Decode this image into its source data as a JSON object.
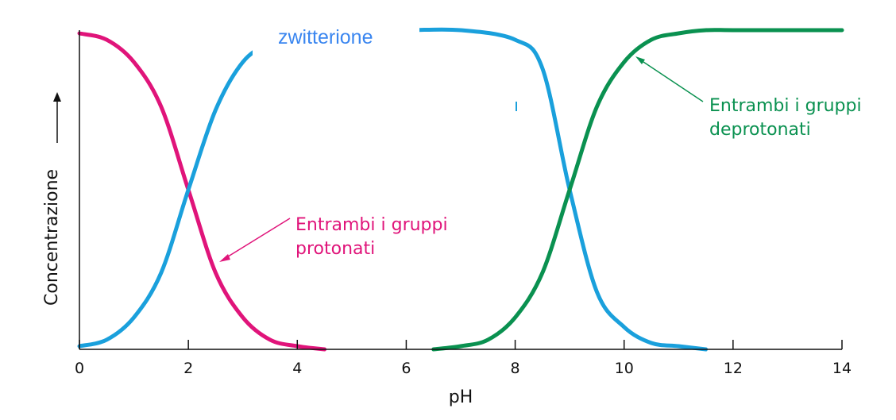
{
  "chart_data": {
    "type": "line",
    "title": "",
    "xlabel": "pH",
    "ylabel": "Concentrazione",
    "xlim": [
      0,
      14
    ],
    "ylim": [
      0,
      1
    ],
    "x_ticks": [
      "0",
      "2",
      "4",
      "6",
      "8",
      "10",
      "12",
      "14"
    ],
    "grid": false,
    "series": [
      {
        "color": "#e0147a",
        "x": [
          0,
          0.5,
          1,
          1.5,
          2,
          2.5,
          3,
          3.5,
          4,
          4.5
        ],
        "y": [
          0.99,
          0.97,
          0.9,
          0.76,
          0.5,
          0.24,
          0.1,
          0.03,
          0.01,
          0.0
        ]
      },
      {
        "color": "#1aa0dc",
        "x": [
          0,
          0.5,
          1,
          1.5,
          2,
          2.5,
          3,
          3.5,
          4,
          5,
          6,
          7,
          8,
          8.5,
          9,
          9.5,
          10,
          10.5,
          11,
          11.5
        ],
        "y": [
          0.01,
          0.03,
          0.1,
          0.24,
          0.5,
          0.75,
          0.9,
          0.96,
          0.99,
          1.0,
          1.0,
          1.0,
          0.97,
          0.88,
          0.5,
          0.18,
          0.07,
          0.02,
          0.01,
          0.0
        ]
      },
      {
        "color": "#0a9150",
        "x": [
          6.5,
          7,
          7.5,
          8,
          8.5,
          9,
          9.5,
          10,
          10.5,
          11,
          11.5,
          12,
          13,
          14
        ],
        "y": [
          0.0,
          0.01,
          0.03,
          0.1,
          0.24,
          0.5,
          0.76,
          0.9,
          0.97,
          0.99,
          1.0,
          1.0,
          1.0,
          1.0
        ]
      }
    ],
    "annotations": [
      {
        "text": "zwitterione",
        "color": "#3a86f0"
      },
      {
        "text": "Entrambi i gruppi",
        "text2": "protonati",
        "color": "#e0147a"
      },
      {
        "text": "Entrambi i gruppi",
        "text2": "deprotonati",
        "color": "#0a9150"
      }
    ]
  }
}
